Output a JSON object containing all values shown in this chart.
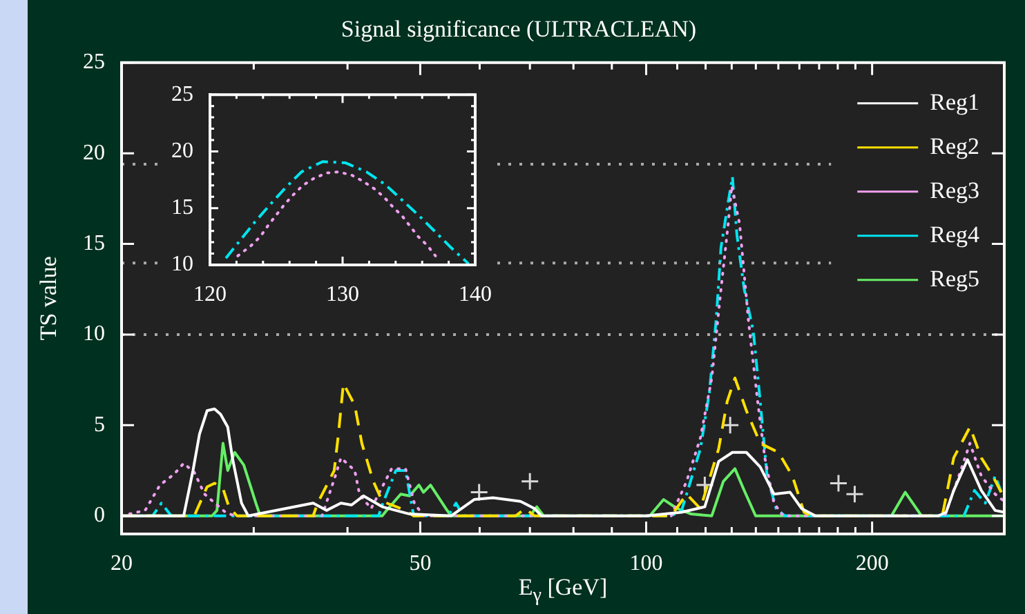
{
  "chart_data": [
    {
      "type": "line",
      "title": "Signal significance (ULTRACLEAN)",
      "xlabel": "E$_{γ}$ [GeV]",
      "ylabel": "TS value",
      "log": "x",
      "xlim": [
        20,
        300
      ],
      "ylim": [
        -1,
        25
      ],
      "xticks": [
        20,
        {
          "value": 30,
          "label": null
        },
        {
          "value": 40,
          "label": null
        },
        50,
        {
          "value": 60,
          "label": null
        },
        {
          "value": 70,
          "label": null
        },
        {
          "value": 80,
          "label": null
        },
        {
          "value": 90,
          "label": null
        },
        100,
        {
          "value": 110,
          "label": null
        },
        {
          "value": 120,
          "label": null
        },
        {
          "value": 130,
          "label": null
        },
        {
          "value": 140,
          "label": null
        },
        {
          "value": 150,
          "label": null
        },
        {
          "value": 160,
          "label": null
        },
        {
          "value": 170,
          "label": null
        },
        {
          "value": 180,
          "label": null
        },
        {
          "value": 190,
          "label": null
        },
        200,
        {
          "value": 300,
          "label": null
        }
      ],
      "yticks": [
        0,
        5,
        10,
        15,
        20,
        25
      ],
      "legend": "top right",
      "marker": "none",
      "ref_lines": [
        {
          "axis": "y",
          "value": 10,
          "color": "#aaaaaa",
          "line_style": "dotted"
        },
        {
          "axis": "y",
          "value": 13.95,
          "color": "#aaaaaa",
          "line_style": "dotted"
        },
        {
          "axis": "y",
          "value": 19.4,
          "color": "#aaaaaa",
          "line_style": "dotted"
        }
      ],
      "series": [
        {
          "name": "Reg1",
          "color": "#ffffff",
          "line_style": "solid",
          "x": [
            20,
            24.2,
            24.9,
            25.4,
            26.0,
            26.6,
            27.1,
            27.7,
            28.1,
            28.9,
            29.5,
            36.0,
            37.5,
            39.2,
            40.5,
            42.0,
            44.5,
            48.4,
            55,
            59.0,
            62.5,
            68.0,
            71.0,
            72.5,
            100,
            111.5,
            119.7,
            124.9,
            130.3,
            136.0,
            141.9,
            148.0,
            155.5,
            161.1,
            168.1,
            245,
            251,
            256.9,
            268.0,
            279.6,
            291.7,
            300
          ],
          "values": [
            0,
            0,
            2.5,
            4.5,
            5.8,
            5.9,
            5.6,
            4.9,
            3.2,
            0.7,
            0,
            0.7,
            0.3,
            0.7,
            0.6,
            1.1,
            0.5,
            0.1,
            0,
            0.9,
            1.0,
            0.8,
            0.4,
            0,
            0,
            0.2,
            0.5,
            3.0,
            3.5,
            3.5,
            2.7,
            1.2,
            1.3,
            0.4,
            0,
            0,
            0.2,
            1.4,
            3.1,
            1.4,
            0.3,
            0.2
          ]
        },
        {
          "name": "Reg2",
          "color": "#ffe000",
          "line_style": "dashed",
          "x": [
            20,
            25.0,
            26.0,
            26.6,
            27.3,
            27.8,
            28.5,
            36.0,
            36.5,
            38.4,
            38.9,
            39.5,
            40.9,
            41.8,
            43.3,
            44.5,
            47.8,
            49,
            67,
            69,
            71,
            108,
            113.2,
            118.1,
            124.9,
            128.2,
            131.3,
            136.0,
            141.9,
            150.1,
            156.6,
            162.3,
            166,
            245,
            248.6,
            256.9,
            270,
            279.6,
            289.6,
            298,
            300
          ],
          "values": [
            0,
            0,
            1.6,
            1.8,
            1.5,
            0.5,
            0,
            0,
            0.7,
            2.5,
            4.5,
            7.3,
            6.1,
            4.0,
            1.9,
            0.8,
            0.3,
            0,
            0,
            0.4,
            0,
            0,
            1.2,
            0.4,
            3.7,
            6.3,
            7.6,
            5.8,
            4.0,
            3.5,
            2.2,
            0.2,
            0,
            0,
            0.2,
            3.2,
            4.9,
            3.2,
            2.2,
            1.2,
            1.0
          ]
        },
        {
          "name": "Reg3",
          "color": "#f0a0f0",
          "line_style": "dotted",
          "x": [
            20,
            21.5,
            22.5,
            23.5,
            24.2,
            25.0,
            25.8,
            26.8,
            27.5,
            28.3,
            37,
            38.6,
            39.2,
            40.9,
            41.5,
            43,
            45.8,
            47.8,
            49.1,
            50.5,
            108,
            113.2,
            118.1,
            122.3,
            125.8,
            128.6,
            130.0,
            133.2,
            136.9,
            140.8,
            143.9,
            148.0,
            152.2,
            250,
            260,
            270,
            279.6,
            291.7,
            300
          ],
          "values": [
            0,
            0.3,
            1.7,
            2.3,
            2.9,
            2.4,
            1.2,
            0.6,
            0.2,
            0,
            0,
            2.3,
            3.2,
            2.5,
            1.2,
            0.4,
            2.6,
            2.6,
            0.7,
            0,
            0,
            1.9,
            4.3,
            7.6,
            12.5,
            16.1,
            18.2,
            16.1,
            10.7,
            6.3,
            3.2,
            0.7,
            0,
            0,
            2.0,
            4.0,
            2.2,
            1.2,
            0.8
          ]
        },
        {
          "name": "Reg4",
          "color": "#00e5ee",
          "line_style": "dashdot",
          "x": [
            20,
            22,
            22.6,
            23.3,
            44,
            44.5,
            46.4,
            47.8,
            49,
            54.5,
            55.8,
            57,
            108,
            111.5,
            118.1,
            121.4,
            124.0,
            125.8,
            128.6,
            130.3,
            132.1,
            135.1,
            138.9,
            141.9,
            144.9,
            149.0,
            153,
            265,
            273.8,
            283,
            291.7,
            298,
            300
          ],
          "values": [
            0,
            0,
            0.7,
            0,
            0,
            0.6,
            2.5,
            2.5,
            0,
            0,
            0.7,
            0,
            0,
            0.3,
            3.7,
            6.8,
            10.9,
            14.8,
            17.3,
            18.7,
            15.5,
            12.5,
            10.2,
            6.3,
            2.2,
            0.4,
            0,
            0,
            1.4,
            0.7,
            2.2,
            1.2,
            1.0
          ]
        },
        {
          "name": "Reg5",
          "color": "#66ee66",
          "line_style": "solid",
          "x": [
            20,
            26.4,
            26.8,
            27.3,
            27.7,
            28.3,
            29.1,
            30.2,
            30.6,
            44.5,
            45.1,
            47.1,
            48.4,
            49.8,
            50.5,
            51.6,
            54.3,
            55.0,
            70,
            71.5,
            73,
            98,
            101.1,
            105.5,
            110.0,
            114.8,
            122.3,
            126.7,
            131.3,
            135.1,
            139.9,
            208,
            212.2,
            221.4,
            232.7,
            300
          ],
          "values": [
            0,
            0,
            0.3,
            4.0,
            2.5,
            3.5,
            2.8,
            0.7,
            0,
            0,
            0.3,
            1.2,
            1.1,
            1.7,
            1.3,
            1.7,
            0.3,
            0,
            0,
            0.5,
            0,
            0,
            0,
            0.9,
            0.4,
            0.1,
            0,
            1.9,
            2.6,
            1.4,
            0,
            0,
            0,
            1.3,
            0,
            0
          ]
        },
        {
          "type": "scatter",
          "marker": "cross",
          "color": "#d8d8d8",
          "x": [
            59.9,
            70.0,
            119.7,
            129.4,
            180.4,
            189.6
          ],
          "values": [
            1.3,
            1.9,
            1.7,
            5.0,
            1.8,
            1.2
          ]
        }
      ]
    },
    {
      "type": "line",
      "xlim": [
        120,
        140
      ],
      "ylim": [
        10,
        25
      ],
      "marker": "none",
      "xticks": [
        120,
        {
          "value": 122,
          "label": null
        },
        {
          "value": 124,
          "label": null
        },
        {
          "value": 126,
          "label": null
        },
        {
          "value": 128,
          "label": null
        },
        130,
        {
          "value": 132,
          "label": null
        },
        {
          "value": 134,
          "label": null
        },
        {
          "value": 136,
          "label": null
        },
        {
          "value": 138,
          "label": null
        },
        140
      ],
      "yticks": [
        10,
        {
          "value": 11,
          "label": null
        },
        {
          "value": 12,
          "label": null
        },
        {
          "value": 13,
          "label": null
        },
        {
          "value": 14,
          "label": null
        },
        15,
        {
          "value": 16,
          "label": null
        },
        {
          "value": 17,
          "label": null
        },
        {
          "value": 18,
          "label": null
        },
        {
          "value": 19,
          "label": null
        },
        20,
        {
          "value": 21,
          "label": null
        },
        {
          "value": 22,
          "label": null
        },
        {
          "value": 23,
          "label": null
        },
        {
          "value": 24,
          "label": null
        },
        25
      ],
      "series": [
        {
          "color": "#f0a0f0",
          "line_style": "dotted",
          "x": [
            122.1,
            123.1,
            123.8,
            124.4,
            125.0,
            125.6,
            126.3,
            127.0,
            127.8,
            128.8,
            129.7,
            130.7,
            131.5,
            132.4,
            133.1,
            133.8,
            134.5,
            135.1,
            135.7,
            136.4,
            137.0
          ],
          "values": [
            10.8,
            11.7,
            12.5,
            13.5,
            14.4,
            15.3,
            16.2,
            17.0,
            17.6,
            18.1,
            18.2,
            17.9,
            17.4,
            16.7,
            16.0,
            15.1,
            14.3,
            13.4,
            12.5,
            11.7,
            10.8
          ]
        },
        {
          "color": "#00e5ee",
          "line_style": "dashdot",
          "x": [
            121.2,
            122.3,
            123.4,
            124.6,
            125.7,
            126.9,
            128.5,
            130.2,
            131.8,
            133.2,
            134.5,
            135.8,
            137.0,
            138.2,
            139.5
          ],
          "values": [
            10.6,
            12.2,
            13.8,
            15.4,
            16.8,
            18.2,
            19.1,
            19.0,
            18.2,
            17.1,
            15.7,
            14.3,
            12.9,
            11.5,
            10.1
          ]
        }
      ]
    }
  ]
}
